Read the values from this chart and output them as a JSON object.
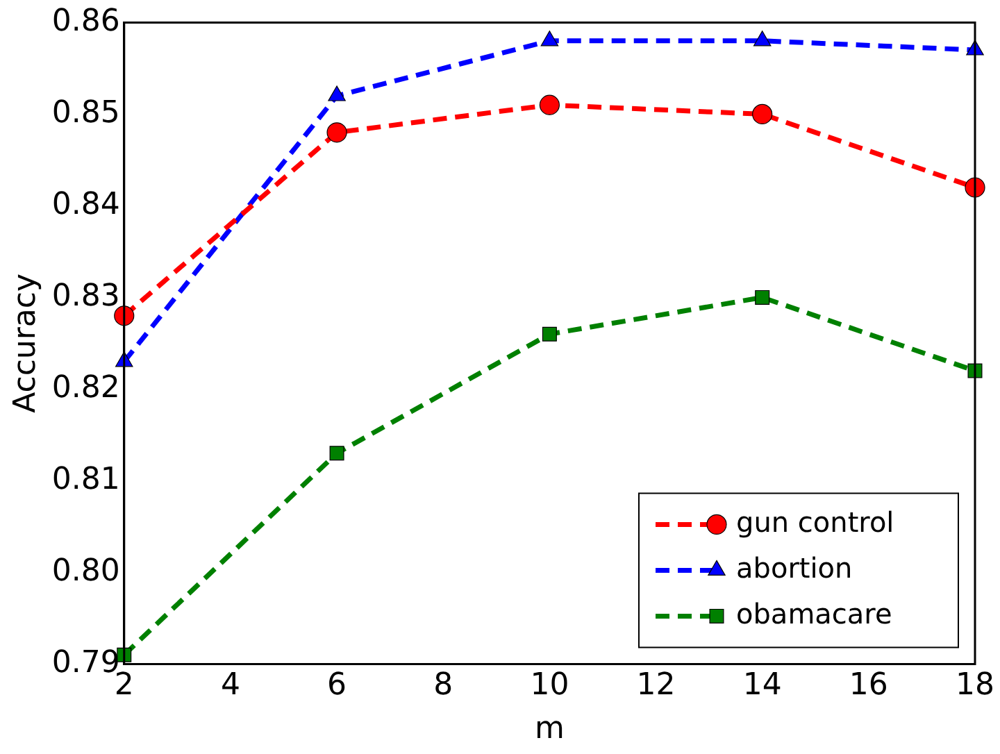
{
  "chart_data": {
    "type": "line",
    "xlabel": "m",
    "ylabel": "Accuracy",
    "x": [
      2,
      6,
      10,
      14,
      18
    ],
    "series": [
      {
        "name": "gun control",
        "color": "#ff0000",
        "marker": "circle",
        "values": [
          0.828,
          0.848,
          0.851,
          0.85,
          0.842
        ]
      },
      {
        "name": "abortion",
        "color": "#0000ff",
        "marker": "triangle",
        "values": [
          0.823,
          0.852,
          0.858,
          0.858,
          0.857
        ]
      },
      {
        "name": "obamacare",
        "color": "#008000",
        "marker": "square",
        "values": [
          0.791,
          0.813,
          0.826,
          0.83,
          0.822
        ]
      }
    ],
    "xlim": [
      2,
      18
    ],
    "xticks": [
      2,
      4,
      6,
      8,
      10,
      12,
      14,
      16,
      18
    ],
    "ylim": [
      0.79,
      0.86
    ],
    "yticks": [
      {
        "value": 0.79,
        "label": "0.79"
      },
      {
        "value": 0.8,
        "label": "0.80"
      },
      {
        "value": 0.81,
        "label": "0.81"
      },
      {
        "value": 0.82,
        "label": "0.82"
      },
      {
        "value": 0.83,
        "label": "0.83"
      },
      {
        "value": 0.84,
        "label": "0.84"
      },
      {
        "value": 0.85,
        "label": "0.85"
      },
      {
        "value": 0.86,
        "label": "0.86"
      }
    ],
    "grid": false,
    "legend": "bottom right",
    "line_style": "dashed"
  }
}
